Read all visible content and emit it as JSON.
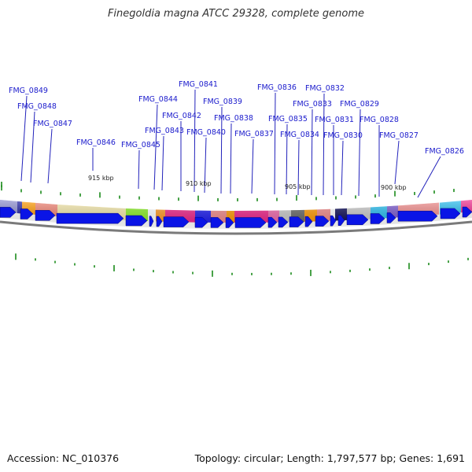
{
  "title": "Finegoldia magna ATCC 29328, complete genome",
  "accession_text": "Accession: NC_010376",
  "summary_text": "Topology: circular; Length: 1,797,577 bp; Genes: 1,691",
  "gene_labels": [
    "FMG_0849",
    "FMG_0848",
    "FMG_0847",
    "FMG_0846",
    "FMG_0845",
    "FMG_0844",
    "FMG_0843",
    "FMG_0842",
    "FMG_0841",
    "FMG_0840",
    "FMG_0839",
    "FMG_0838",
    "FMG_0837",
    "FMG_0836",
    "FMG_0835",
    "FMG_0834",
    "FMG_0833",
    "FMG_0832",
    "FMG_0831",
    "FMG_0830",
    "FMG_0829",
    "FMG_0828",
    "FMG_0827",
    "FMG_0826"
  ],
  "scale_labels": [
    "915 kbp",
    "910 kbp",
    "905 kbp",
    "900 kbp"
  ],
  "colors": {
    "gene_arrow": "#0a14e6",
    "tick": "#1a8a1a",
    "label": "#1a1acc",
    "backbone": "#777777"
  }
}
